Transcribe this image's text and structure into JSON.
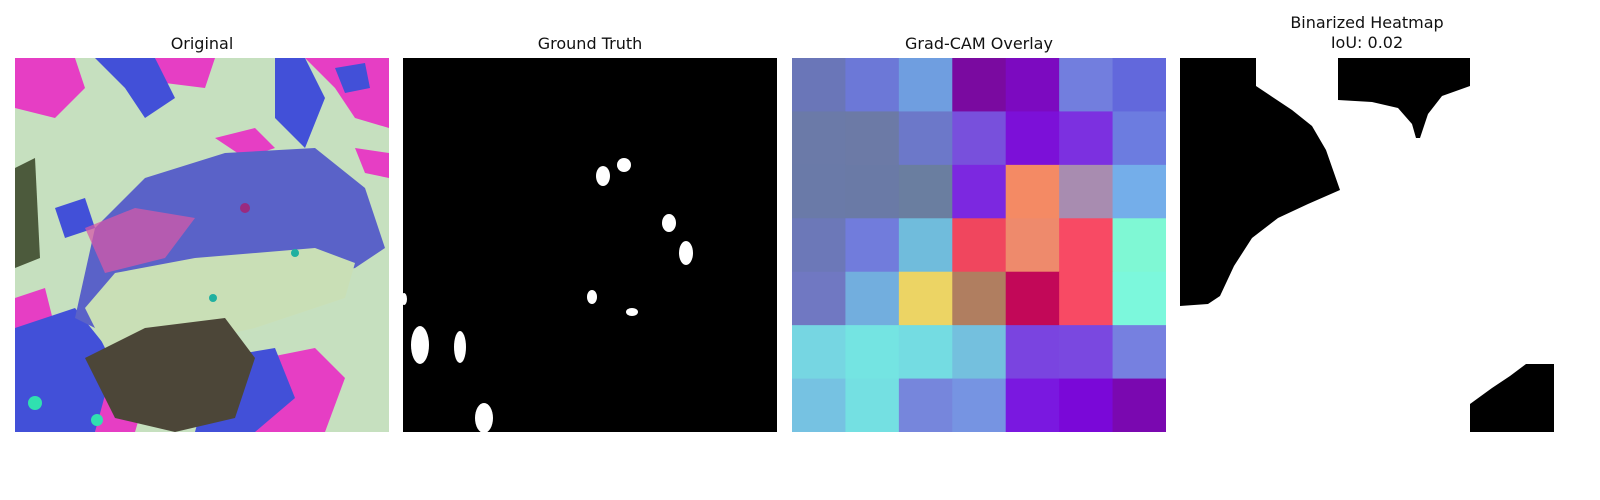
{
  "panels": [
    {
      "title": "Original"
    },
    {
      "title": "Ground Truth"
    },
    {
      "title": "Grad-CAM Overlay"
    },
    {
      "title": "Binarized Heatmap\nIoU: 0.02"
    }
  ],
  "gradcam_grid": [
    [
      "#6a76b8",
      "#6c78d7",
      "#6f9ee0",
      "#7a0aa0",
      "#7c0ac0",
      "#727ede",
      "#6268dc"
    ],
    [
      "#6b7aa8",
      "#6c7aa6",
      "#6c78c9",
      "#7850dc",
      "#7c10d8",
      "#7c30e0",
      "#6c7ce0"
    ],
    [
      "#6a7aa8",
      "#6a7aa6",
      "#6a7ea0",
      "#7c28e0",
      "#f48a64",
      "#a88cb0",
      "#74aeea"
    ],
    [
      "#6c78b8",
      "#717cdc",
      "#70bcdc",
      "#f0465e",
      "#ee8a6c",
      "#f84a64",
      "#7ff8d4"
    ],
    [
      "#7078c2",
      "#72aede",
      "#ecd464",
      "#b07e60",
      "#c20858",
      "#f84a64",
      "#7cf8dc"
    ],
    [
      "#76d6e2",
      "#74e4e2",
      "#74dce2",
      "#74c0de",
      "#7a44e0",
      "#7a48e0",
      "#7680e0"
    ],
    [
      "#76c2e2",
      "#74e0e2",
      "#7686dc",
      "#7694e2",
      "#7a18e0",
      "#7a08d8",
      "#7a08b0"
    ]
  ]
}
